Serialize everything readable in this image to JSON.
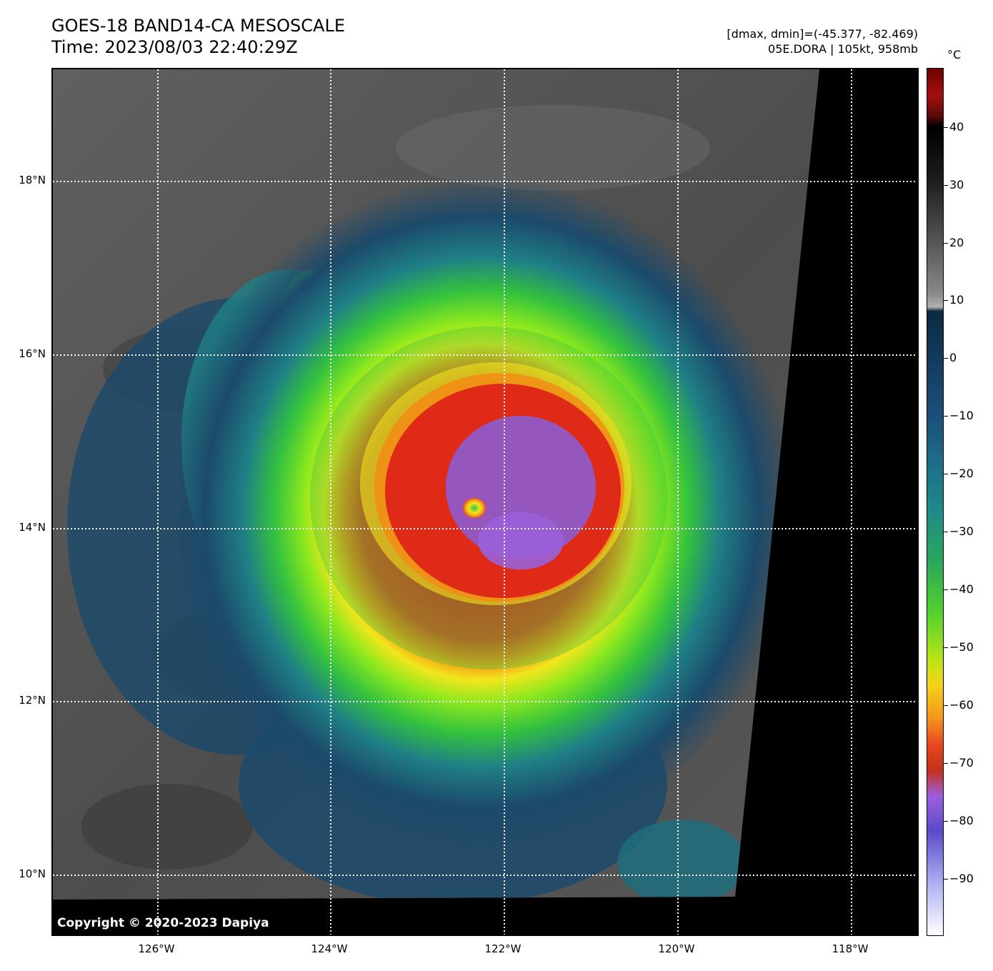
{
  "header": {
    "title_line1": "GOES-18 BAND14-CA MESOSCALE",
    "title_line2": "Time: 2023/08/03 22:40:29Z",
    "dmax_dmin": "[dmax, dmin]=(-45.377, -82.469)",
    "storm_info": "05E.DORA | 105kt, 958mb"
  },
  "map": {
    "lat_labels": [
      "18°N",
      "16°N",
      "14°N",
      "12°N",
      "10°N"
    ],
    "lon_labels": [
      "126°W",
      "124°W",
      "122°W",
      "120°W",
      "118°W"
    ],
    "copyright": "Copyright © 2020-2023 Dapiya",
    "storm_center": {
      "lat": 14.2,
      "lon": -122.35
    }
  },
  "colorbar": {
    "unit": "°C",
    "tick_labels": [
      "40",
      "30",
      "20",
      "10",
      "0",
      "−10",
      "−20",
      "−30",
      "−40",
      "−50",
      "−60",
      "−70",
      "−80",
      "−90"
    ],
    "range": [
      -100,
      50
    ]
  },
  "colors": {
    "bg_gray": "#5e5e5e",
    "outer_blue": "#1c4a6b",
    "teal": "#1f7f86",
    "green": "#34c23e",
    "lime": "#8be81e",
    "yellow": "#f2e51d",
    "orange": "#f58a14",
    "red": "#df2a18",
    "purple": "#9a60d8",
    "grid": "#ffffff"
  }
}
